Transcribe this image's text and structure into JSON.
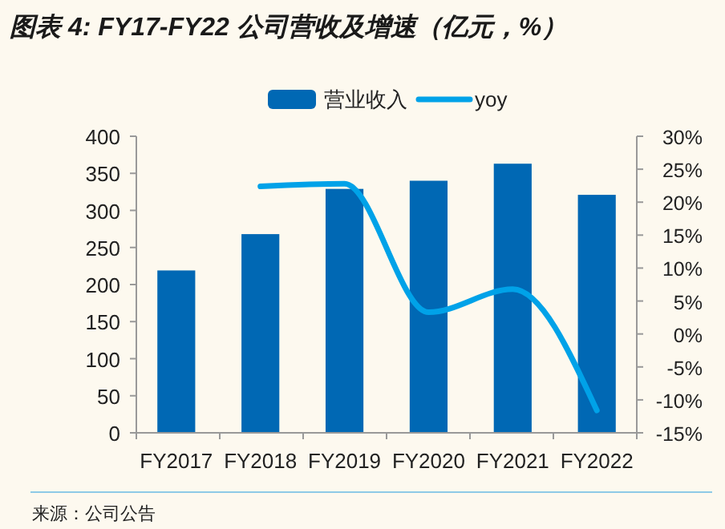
{
  "chart_data": {
    "type": "bar",
    "title": "图表 4:  FY17-FY22 公司营收及增速（亿元，%）",
    "categories": [
      "FY2017",
      "FY2018",
      "FY2019",
      "FY2020",
      "FY2021",
      "FY2022"
    ],
    "series": [
      {
        "name": "营业收入",
        "color": "#0068b4",
        "values": [
          219,
          268,
          329,
          340,
          363,
          321
        ]
      },
      {
        "name": "yoy",
        "type": "line",
        "axis": "y2",
        "color": "#00a2e8",
        "values": [
          null,
          22.4,
          22.8,
          3.3,
          6.8,
          -11.6
        ]
      }
    ],
    "ylim": [
      0,
      400
    ],
    "yticks": [
      0,
      50,
      100,
      150,
      200,
      250,
      300,
      350,
      400
    ],
    "y2lim": [
      -15,
      30
    ],
    "y2ticks": [
      {
        "value": -15,
        "label": "-15%"
      },
      {
        "value": -10,
        "label": "-10%"
      },
      {
        "value": -5,
        "label": "-5%"
      },
      {
        "value": 0,
        "label": "0%"
      },
      {
        "value": 5,
        "label": "5%"
      },
      {
        "value": 10,
        "label": "10%"
      },
      {
        "value": 15,
        "label": "15%"
      },
      {
        "value": 20,
        "label": "20%"
      },
      {
        "value": 25,
        "label": "25%"
      },
      {
        "value": 30,
        "label": "30%"
      }
    ],
    "legend": "top",
    "grid": false,
    "marker": "none",
    "annotations": [
      "来源：公司公告"
    ]
  }
}
